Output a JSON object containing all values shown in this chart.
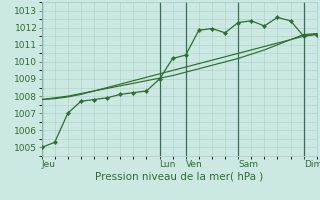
{
  "bg_color": "#cce8e2",
  "grid_color": "#a8cfc8",
  "line_color": "#2d6e2d",
  "sep_color": "#3a6e50",
  "title": "Pression niveau de la mer( hPa )",
  "ylim": [
    1004.5,
    1013.5
  ],
  "yticks": [
    1005,
    1006,
    1007,
    1008,
    1009,
    1010,
    1011,
    1012,
    1013
  ],
  "day_labels": [
    "Jeu",
    "Lun",
    "Ven",
    "Sam",
    "Dim"
  ],
  "day_positions": [
    0,
    9,
    11,
    15,
    20
  ],
  "n_points": 22,
  "xlim": [
    0,
    21
  ],
  "series1_x": [
    0,
    1,
    2,
    3,
    4,
    5,
    6,
    7,
    8,
    9,
    10,
    11,
    12,
    13,
    14,
    15,
    16,
    17,
    18,
    19,
    20,
    21
  ],
  "series1_y": [
    1005.0,
    1005.3,
    1007.0,
    1007.7,
    1007.8,
    1007.9,
    1008.1,
    1008.2,
    1008.3,
    1009.0,
    1010.2,
    1010.4,
    1011.85,
    1011.95,
    1011.7,
    1012.3,
    1012.4,
    1012.1,
    1012.6,
    1012.4,
    1011.5,
    1011.6
  ],
  "series2_x": [
    0,
    1,
    2,
    3,
    4,
    5,
    6,
    7,
    8,
    9,
    10,
    11,
    12,
    13,
    14,
    15,
    16,
    17,
    18,
    19,
    20,
    21
  ],
  "series2_y": [
    1007.8,
    1007.85,
    1007.95,
    1008.1,
    1008.3,
    1008.45,
    1008.6,
    1008.75,
    1008.9,
    1009.05,
    1009.2,
    1009.4,
    1009.6,
    1009.8,
    1010.0,
    1010.2,
    1010.45,
    1010.7,
    1011.0,
    1011.3,
    1011.6,
    1011.65
  ],
  "series3_x": [
    0,
    1,
    2,
    3,
    4,
    5,
    6,
    7,
    8,
    9,
    10,
    11,
    12,
    13,
    14,
    15,
    16,
    17,
    18,
    19,
    20,
    21
  ],
  "series3_y": [
    1007.8,
    1007.9,
    1008.0,
    1008.15,
    1008.3,
    1008.5,
    1008.7,
    1008.9,
    1009.1,
    1009.3,
    1009.5,
    1009.7,
    1009.9,
    1010.1,
    1010.3,
    1010.5,
    1010.7,
    1010.9,
    1011.1,
    1011.3,
    1011.5,
    1011.65
  ],
  "tick_fontsize": 6.5,
  "xlabel_fontsize": 7.5
}
